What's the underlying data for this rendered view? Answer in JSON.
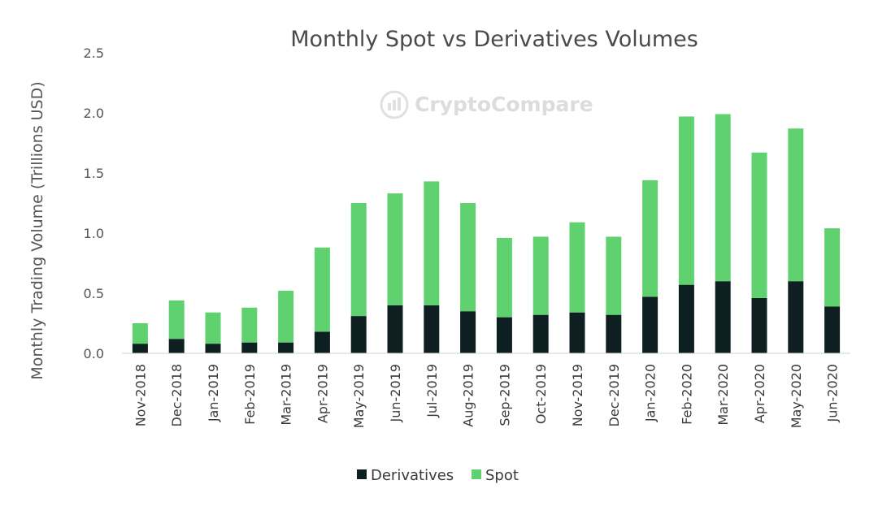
{
  "chart_data": {
    "type": "bar",
    "stacked": true,
    "title": "Monthly Spot vs Derivatives Volumes",
    "xlabel": "",
    "ylabel": "Monthly Trading Volume (Trillions USD)",
    "ylim": [
      0,
      2.5
    ],
    "yticks": [
      "0.0",
      "0.5",
      "1.0",
      "1.5",
      "2.0",
      "2.5"
    ],
    "grid": false,
    "legend_position": "bottom",
    "categories": [
      "Nov-2018",
      "Dec-2018",
      "Jan-2019",
      "Feb-2019",
      "Mar-2019",
      "Apr-2019",
      "May-2019",
      "Jun-2019",
      "Jul-2019",
      "Aug-2019",
      "Sep-2019",
      "Oct-2019",
      "Nov-2019",
      "Dec-2019",
      "Jan-2020",
      "Feb-2020",
      "Mar-2020",
      "Apr-2020",
      "May-2020",
      "Jun-2020"
    ],
    "series": [
      {
        "name": "Derivatives",
        "color": "#0d1f21",
        "values": [
          0.08,
          0.12,
          0.08,
          0.09,
          0.09,
          0.18,
          0.31,
          0.4,
          0.4,
          0.35,
          0.3,
          0.32,
          0.34,
          0.32,
          0.47,
          0.57,
          0.6,
          0.46,
          0.6,
          0.39
        ]
      },
      {
        "name": "Spot",
        "color": "#5fd16f",
        "values": [
          0.17,
          0.32,
          0.26,
          0.29,
          0.43,
          0.7,
          0.94,
          0.93,
          1.03,
          0.9,
          0.66,
          0.65,
          0.75,
          0.65,
          0.97,
          1.4,
          1.39,
          1.21,
          1.27,
          0.65
        ]
      }
    ]
  },
  "watermark": {
    "text_a": "Crypto",
    "text_b": "Compare"
  }
}
